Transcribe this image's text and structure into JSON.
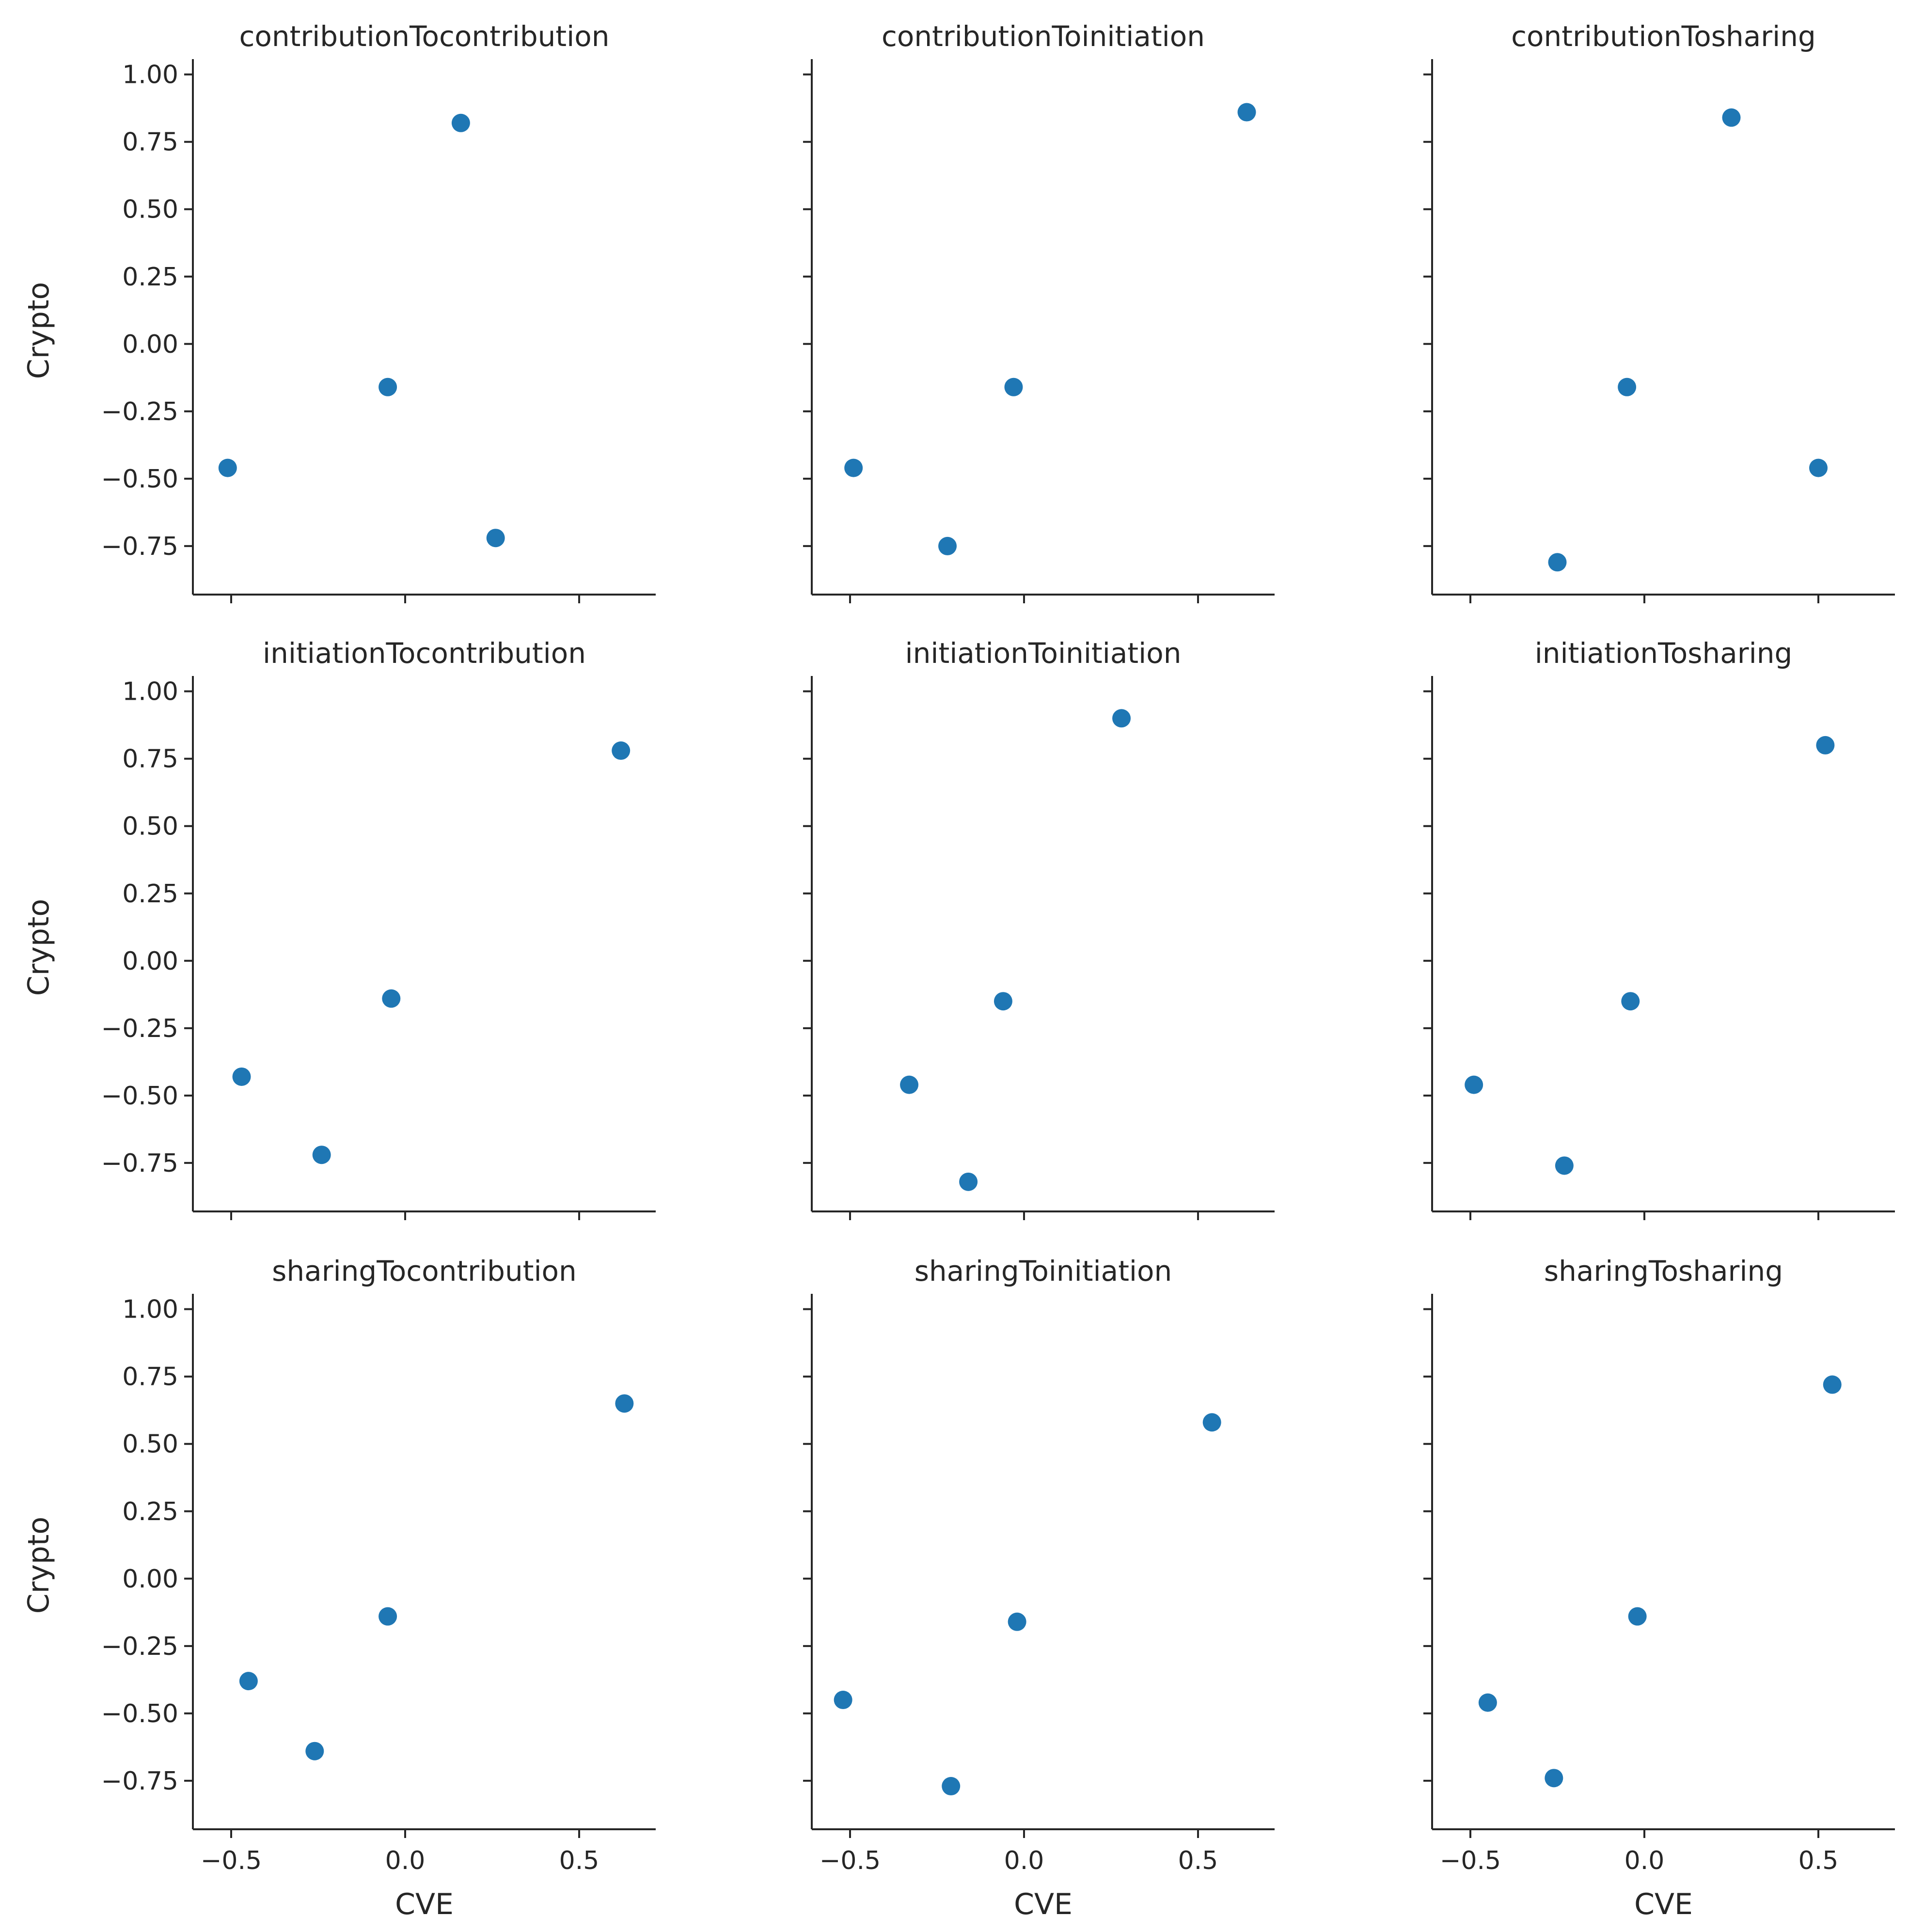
{
  "chart_data": {
    "type": "scatter",
    "layout": "facet-grid-3x3",
    "shared_axes": true,
    "xlabel": "CVE",
    "ylabel": "Crypto",
    "xlim": [
      -0.61,
      0.72
    ],
    "ylim": [
      -0.93,
      1.03
    ],
    "xticks": [
      -0.5,
      0.0,
      0.5
    ],
    "xtick_labels": [
      "−0.5",
      "0.0",
      "0.5"
    ],
    "yticks": [
      1.0,
      0.75,
      0.5,
      0.25,
      0.0,
      -0.25,
      -0.5,
      -0.75
    ],
    "ytick_labels": [
      "1.00",
      "0.75",
      "0.50",
      "0.25",
      "0.00",
      "−0.25",
      "−0.50",
      "−0.75"
    ],
    "marker_color": "#1f77b4",
    "panels": [
      {
        "title": "contributionTocontribution",
        "points": [
          [
            -0.51,
            -0.46
          ],
          [
            -0.05,
            -0.16
          ],
          [
            0.16,
            0.82
          ],
          [
            0.26,
            -0.72
          ]
        ]
      },
      {
        "title": "contributionToinitiation",
        "points": [
          [
            -0.49,
            -0.46
          ],
          [
            -0.22,
            -0.75
          ],
          [
            -0.03,
            -0.16
          ],
          [
            0.64,
            0.86
          ]
        ]
      },
      {
        "title": "contributionTosharing",
        "points": [
          [
            -0.25,
            -0.81
          ],
          [
            -0.05,
            -0.16
          ],
          [
            0.25,
            0.84
          ],
          [
            0.5,
            -0.46
          ]
        ]
      },
      {
        "title": "initiationTocontribution",
        "points": [
          [
            -0.47,
            -0.43
          ],
          [
            -0.24,
            -0.72
          ],
          [
            -0.04,
            -0.14
          ],
          [
            0.62,
            0.78
          ]
        ]
      },
      {
        "title": "initiationToinitiation",
        "points": [
          [
            -0.33,
            -0.46
          ],
          [
            -0.16,
            -0.82
          ],
          [
            -0.06,
            -0.15
          ],
          [
            0.28,
            0.9
          ]
        ]
      },
      {
        "title": "initiationTosharing",
        "points": [
          [
            -0.49,
            -0.46
          ],
          [
            -0.23,
            -0.76
          ],
          [
            -0.04,
            -0.15
          ],
          [
            0.52,
            0.8
          ]
        ]
      },
      {
        "title": "sharingTocontribution",
        "points": [
          [
            -0.45,
            -0.38
          ],
          [
            -0.26,
            -0.64
          ],
          [
            -0.05,
            -0.14
          ],
          [
            0.63,
            0.65
          ]
        ]
      },
      {
        "title": "sharingToinitiation",
        "points": [
          [
            -0.52,
            -0.45
          ],
          [
            -0.21,
            -0.77
          ],
          [
            -0.02,
            -0.16
          ],
          [
            0.54,
            0.58
          ]
        ]
      },
      {
        "title": "sharingTosharing",
        "points": [
          [
            -0.45,
            -0.46
          ],
          [
            -0.26,
            -0.74
          ],
          [
            -0.02,
            -0.14
          ],
          [
            0.54,
            0.72
          ]
        ]
      }
    ]
  }
}
